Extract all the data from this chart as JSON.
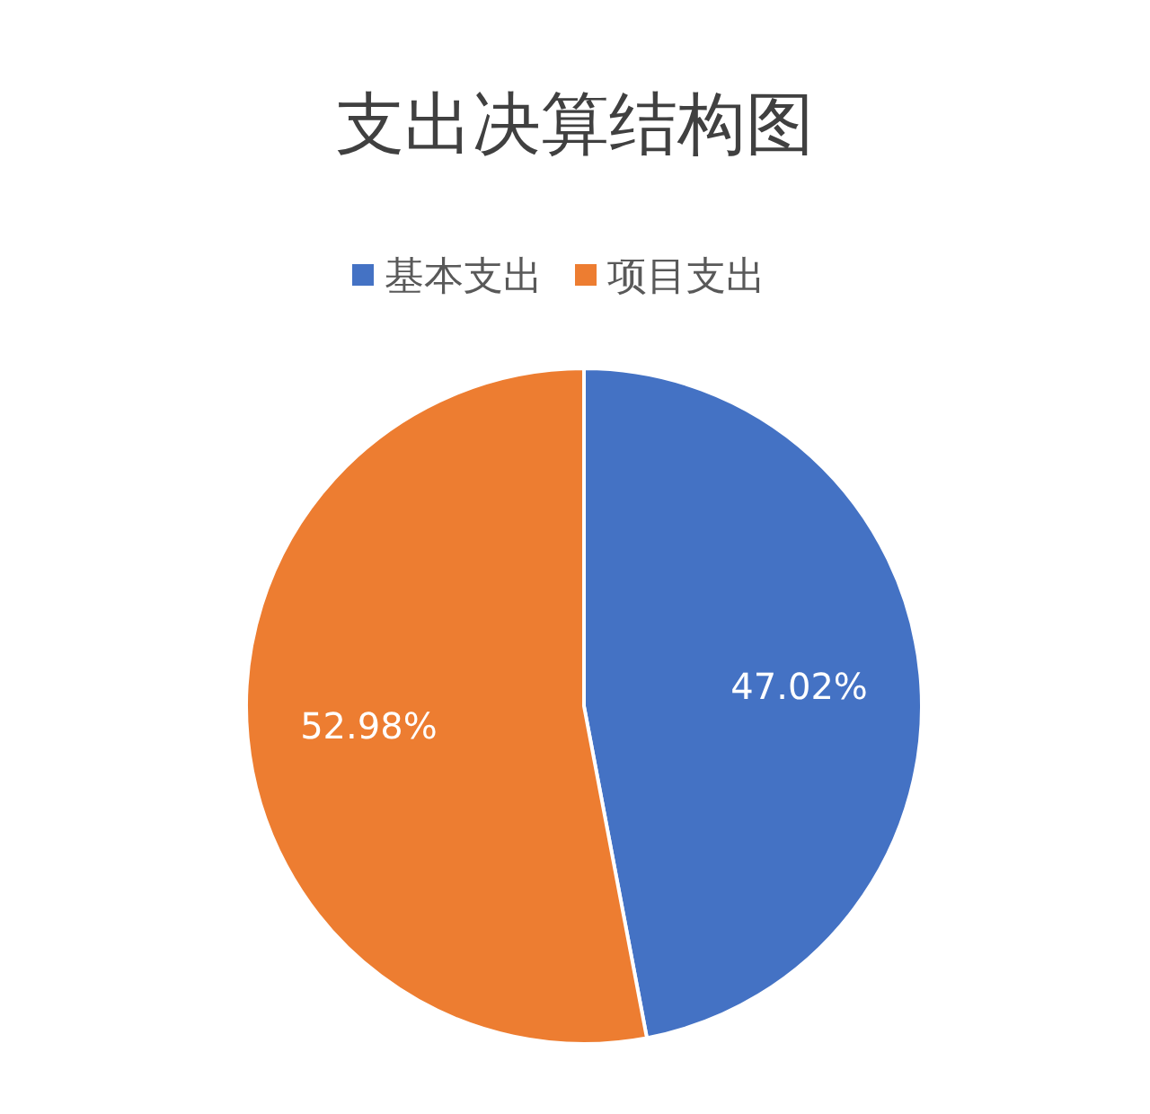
{
  "chart_data": {
    "type": "pie",
    "title": "支出决算结构图",
    "categories": [
      "基本支出",
      "项目支出"
    ],
    "values": [
      47.02,
      52.98
    ],
    "colors": [
      "#4472c4",
      "#ed7d31"
    ],
    "value_labels": [
      "47.02%",
      "52.98%"
    ],
    "legend": "top"
  }
}
